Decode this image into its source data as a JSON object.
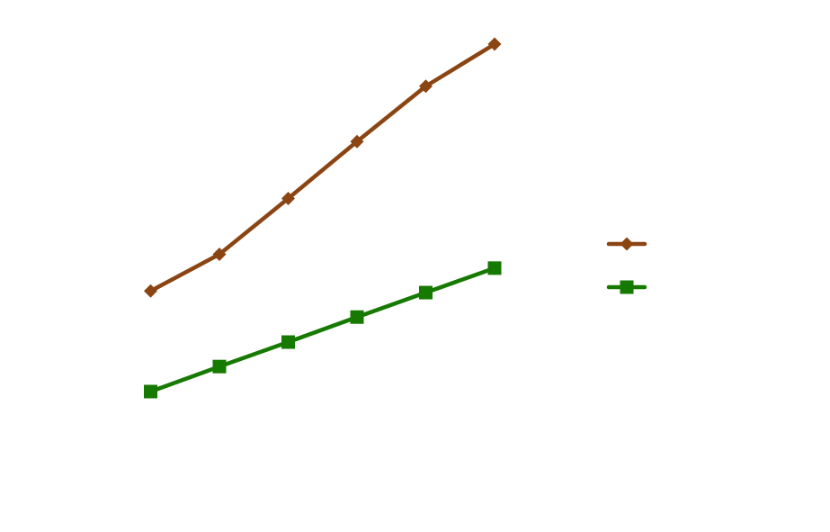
{
  "chart_data": {
    "type": "line",
    "title": "",
    "xlabel": "",
    "ylabel": "",
    "x": [
      1,
      2,
      3,
      4,
      5,
      6
    ],
    "xlim": [
      0,
      10
    ],
    "ylim": [
      0,
      100
    ],
    "grid": false,
    "legend": {
      "placement": "right"
    },
    "series": [
      {
        "color": "#8b4513",
        "marker": "diamond",
        "values": [
          45.3,
          52.2,
          62.7,
          73.4,
          83.8,
          91.7
        ]
      },
      {
        "color": "#167a00",
        "marker": "square",
        "values": [
          26.4,
          31.1,
          35.7,
          40.4,
          45.0,
          49.6
        ]
      }
    ]
  }
}
